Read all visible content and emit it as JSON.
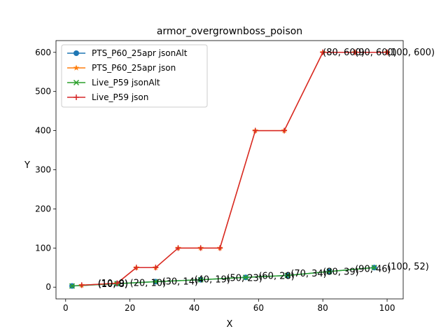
{
  "chart_data": {
    "type": "line",
    "title": "armor_overgrownboss_poison",
    "xlabel": "X",
    "ylabel": "Y",
    "xlim": [
      -3,
      105
    ],
    "ylim": [
      -30,
      630
    ],
    "xticks": [
      0,
      20,
      40,
      60,
      80,
      100
    ],
    "yticks": [
      0,
      100,
      200,
      300,
      400,
      500,
      600
    ],
    "grid": false,
    "legend_position": "upper left",
    "series": [
      {
        "name": "PTS_P60_25apr jsonAlt",
        "color": "#1f77b4",
        "marker": "circle",
        "x": [
          2,
          16,
          28,
          42,
          56,
          69,
          82,
          96
        ],
        "y": [
          3,
          9,
          14,
          19,
          25,
          30,
          40,
          50
        ]
      },
      {
        "name": "PTS_P60_25apr json",
        "color": "#ff7f0e",
        "marker": "star",
        "x": [
          5,
          16,
          22,
          28,
          35,
          42,
          48,
          59,
          68,
          80,
          90,
          100
        ],
        "y": [
          5,
          10,
          50,
          50,
          100,
          100,
          100,
          400,
          400,
          600,
          600,
          600
        ]
      },
      {
        "name": "Live_P59 jsonAlt",
        "color": "#2ca02c",
        "marker": "x",
        "x": [
          2,
          16,
          28,
          42,
          56,
          69,
          82,
          96
        ],
        "y": [
          3,
          9,
          14,
          19,
          25,
          30,
          40,
          50
        ]
      },
      {
        "name": "Live_P59 json",
        "color": "#d62728",
        "marker": "plus",
        "x": [
          5,
          16,
          22,
          28,
          35,
          42,
          48,
          59,
          68,
          80,
          90,
          100
        ],
        "y": [
          5,
          10,
          50,
          50,
          100,
          100,
          100,
          400,
          400,
          600,
          600,
          600
        ]
      }
    ],
    "annotations": [
      {
        "x": 10,
        "y": 9,
        "text": "(10, 9)"
      },
      {
        "x": 10,
        "y": 8,
        "text": "(10, 8)"
      },
      {
        "x": 20,
        "y": 10,
        "text": "(20, 10)"
      },
      {
        "x": 30,
        "y": 14,
        "text": "(30, 14)"
      },
      {
        "x": 40,
        "y": 19,
        "text": "(40, 19)"
      },
      {
        "x": 50,
        "y": 23,
        "text": "(50, 23)"
      },
      {
        "x": 60,
        "y": 28,
        "text": "(60, 28)"
      },
      {
        "x": 70,
        "y": 34,
        "text": "(70, 34)"
      },
      {
        "x": 80,
        "y": 39,
        "text": "(80, 39)"
      },
      {
        "x": 90,
        "y": 46,
        "text": "(90, 46)"
      },
      {
        "x": 100,
        "y": 52,
        "text": "(100, 52)"
      },
      {
        "x": 80,
        "y": 600,
        "text": "(80, 600)"
      },
      {
        "x": 90,
        "y": 600,
        "text": "(90, 600)"
      },
      {
        "x": 100,
        "y": 600,
        "text": "(100, 600)"
      }
    ]
  }
}
